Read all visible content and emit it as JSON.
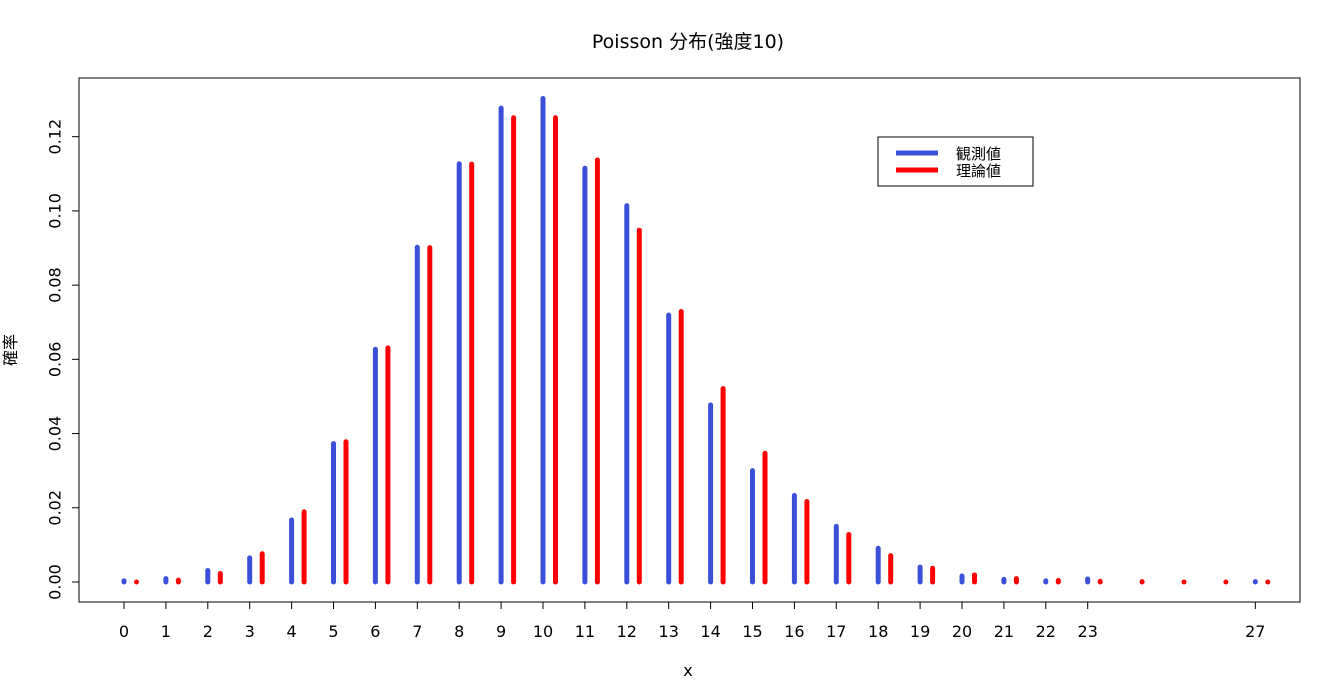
{
  "chart_data": {
    "type": "bar",
    "title": "Poisson 分布(強度10)",
    "xlabel": "x",
    "ylabel": "確率",
    "ylim": [
      0,
      0.13
    ],
    "yticks": [
      "0.00",
      "0.02",
      "0.04",
      "0.06",
      "0.08",
      "0.10",
      "0.12"
    ],
    "xticks": [
      "0",
      "1",
      "2",
      "3",
      "4",
      "5",
      "6",
      "7",
      "8",
      "9",
      "10",
      "11",
      "12",
      "13",
      "14",
      "15",
      "16",
      "17",
      "18",
      "19",
      "20",
      "21",
      "22",
      "23",
      "27"
    ],
    "x": [
      0,
      1,
      2,
      3,
      4,
      5,
      6,
      7,
      8,
      9,
      10,
      11,
      12,
      13,
      14,
      15,
      16,
      17,
      18,
      19,
      20,
      21,
      22,
      23,
      24,
      25,
      26,
      27
    ],
    "legend_position": "top-right",
    "series": [
      {
        "name": "観測値",
        "color": "#3A50D8",
        "x": [
          0,
          1,
          2,
          3,
          4,
          5,
          6,
          7,
          8,
          9,
          10,
          11,
          12,
          13,
          14,
          15,
          16,
          17,
          18,
          19,
          20,
          21,
          22,
          23,
          27
        ],
        "values": [
          0.0003,
          0.0009,
          0.0031,
          0.0065,
          0.0167,
          0.0373,
          0.0627,
          0.0902,
          0.1127,
          0.1277,
          0.1303,
          0.1115,
          0.1014,
          0.0719,
          0.0477,
          0.03,
          0.0233,
          0.015,
          0.0091,
          0.004,
          0.0016,
          0.0007,
          0.0003,
          0.0008,
          0.0001
        ]
      },
      {
        "name": "理論値",
        "color": "#FF0000",
        "x": [
          0,
          1,
          2,
          3,
          4,
          5,
          6,
          7,
          8,
          9,
          10,
          11,
          12,
          13,
          14,
          15,
          16,
          17,
          18,
          19,
          20,
          21,
          22,
          23,
          24,
          25,
          26,
          27
        ],
        "values": [
          0.0,
          0.0005,
          0.0023,
          0.0076,
          0.0189,
          0.0378,
          0.0631,
          0.0901,
          0.1126,
          0.1251,
          0.1251,
          0.1137,
          0.0948,
          0.0729,
          0.0521,
          0.0347,
          0.0217,
          0.0128,
          0.0071,
          0.0037,
          0.0019,
          0.0009,
          0.0004,
          0.0002,
          0.0001,
          0.0,
          0.0,
          0.0
        ]
      }
    ]
  }
}
